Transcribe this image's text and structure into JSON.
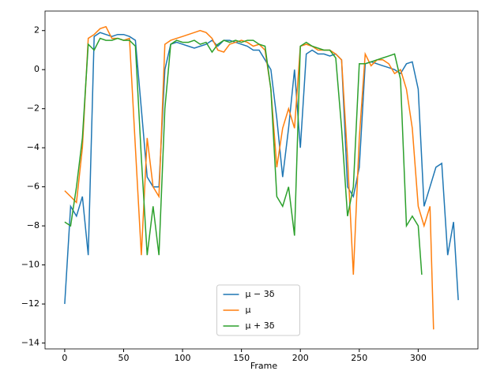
{
  "chart_data": {
    "type": "line",
    "xlabel": "Frame",
    "xlim": [
      -16.7,
      350.7
    ],
    "ylim": [
      -14.3,
      3.0
    ],
    "xticks": [
      0,
      50,
      100,
      150,
      200,
      250,
      300
    ],
    "yticks": [
      2,
      0,
      {
        "value": -2,
        "label": "−2"
      },
      {
        "value": -4,
        "label": "−4"
      },
      {
        "value": -6,
        "label": "−6"
      },
      {
        "value": -8,
        "label": "−8"
      },
      {
        "value": -10,
        "label": "−10"
      },
      {
        "value": -12,
        "label": "−12"
      },
      {
        "value": -14,
        "label": "−14"
      }
    ],
    "legend": "lower center",
    "series": [
      {
        "name": "μ − 3δ",
        "color": "#1f77b4",
        "x": [
          0,
          5,
          10,
          15,
          20,
          25,
          30,
          35,
          40,
          45,
          50,
          55,
          60,
          65,
          70,
          75,
          80,
          85,
          90,
          95,
          100,
          105,
          110,
          115,
          120,
          125,
          130,
          135,
          140,
          145,
          150,
          155,
          160,
          165,
          170,
          175,
          180,
          185,
          190,
          195,
          200,
          205,
          210,
          215,
          220,
          225,
          230,
          235,
          240,
          245,
          250,
          255,
          260,
          265,
          270,
          275,
          280,
          285,
          290,
          295,
          300,
          305,
          310,
          315,
          320,
          325,
          330,
          334
        ],
        "values": [
          -12,
          -7,
          -7.5,
          -6.5,
          -9.5,
          1.7,
          1.9,
          1.8,
          1.7,
          1.8,
          1.8,
          1.7,
          1.5,
          -2,
          -5.5,
          -6,
          -6,
          0,
          1.3,
          1.4,
          1.3,
          1.2,
          1.1,
          1.2,
          1.3,
          1.5,
          1.2,
          1.5,
          1.5,
          1.4,
          1.3,
          1.2,
          1.0,
          1.0,
          0.5,
          0,
          -2.5,
          -5.5,
          -3,
          0,
          -4,
          0.8,
          1.0,
          0.8,
          0.8,
          0.7,
          0.8,
          0.5,
          -6,
          -6.5,
          -5,
          0.3,
          0.4,
          0.3,
          0.2,
          0.1,
          0,
          -0.2,
          0.3,
          0.4,
          -1,
          -7,
          -6,
          -5,
          -4.8,
          -9.5,
          -7.8,
          -11.8
        ]
      },
      {
        "name": "μ",
        "color": "#ff7f0e",
        "x": [
          0,
          5,
          10,
          15,
          20,
          25,
          30,
          35,
          40,
          45,
          50,
          55,
          60,
          65,
          70,
          75,
          80,
          85,
          90,
          95,
          100,
          105,
          110,
          115,
          120,
          125,
          130,
          135,
          140,
          145,
          150,
          155,
          160,
          165,
          170,
          175,
          180,
          185,
          190,
          195,
          200,
          205,
          210,
          215,
          220,
          225,
          230,
          235,
          240,
          245,
          250,
          255,
          260,
          265,
          270,
          275,
          280,
          285,
          290,
          295,
          300,
          305,
          310,
          313
        ],
        "values": [
          -6.2,
          -6.5,
          -6.8,
          -4,
          1.6,
          1.8,
          2.1,
          2.2,
          1.6,
          1.6,
          1.5,
          1.6,
          -4,
          -9.5,
          -3.5,
          -6,
          -6.5,
          1.3,
          1.5,
          1.6,
          1.7,
          1.8,
          1.9,
          2.0,
          1.9,
          1.6,
          1.0,
          0.9,
          1.3,
          1.4,
          1.5,
          1.4,
          1.2,
          1.3,
          1.0,
          -1,
          -5,
          -3,
          -2,
          -3,
          1.2,
          1.3,
          1.2,
          1.0,
          1.0,
          1.0,
          0.8,
          0.5,
          -4.5,
          -10.5,
          -3.5,
          0.8,
          0.2,
          0.5,
          0.5,
          0.3,
          -0.2,
          0,
          -1,
          -3,
          -7,
          -8,
          -7,
          -13.3
        ]
      },
      {
        "name": "μ + 3δ",
        "color": "#2ca02c",
        "x": [
          0,
          5,
          10,
          15,
          20,
          25,
          30,
          35,
          40,
          45,
          50,
          55,
          60,
          65,
          70,
          75,
          80,
          85,
          90,
          95,
          100,
          105,
          110,
          115,
          120,
          125,
          130,
          135,
          140,
          145,
          150,
          155,
          160,
          165,
          170,
          175,
          180,
          185,
          190,
          195,
          200,
          205,
          210,
          215,
          220,
          225,
          230,
          235,
          240,
          245,
          250,
          255,
          260,
          265,
          270,
          275,
          280,
          285,
          290,
          295,
          300,
          303
        ],
        "values": [
          -7.8,
          -8,
          -6,
          -3.5,
          1.3,
          1.0,
          1.6,
          1.5,
          1.5,
          1.6,
          1.5,
          1.5,
          1.2,
          -4.5,
          -9.5,
          -7,
          -9.5,
          -2,
          1.3,
          1.5,
          1.4,
          1.4,
          1.5,
          1.3,
          1.4,
          0.9,
          1.3,
          1.5,
          1.4,
          1.5,
          1.4,
          1.5,
          1.5,
          1.3,
          1.2,
          -1,
          -6.5,
          -7,
          -6,
          -8.5,
          1.2,
          1.4,
          1.2,
          1.1,
          1.0,
          1.0,
          0.6,
          -3,
          -7.5,
          -6,
          0.3,
          0.3,
          0.4,
          0.5,
          0.6,
          0.7,
          0.8,
          -0.5,
          -8,
          -7.5,
          -8,
          -10.5
        ]
      }
    ]
  }
}
